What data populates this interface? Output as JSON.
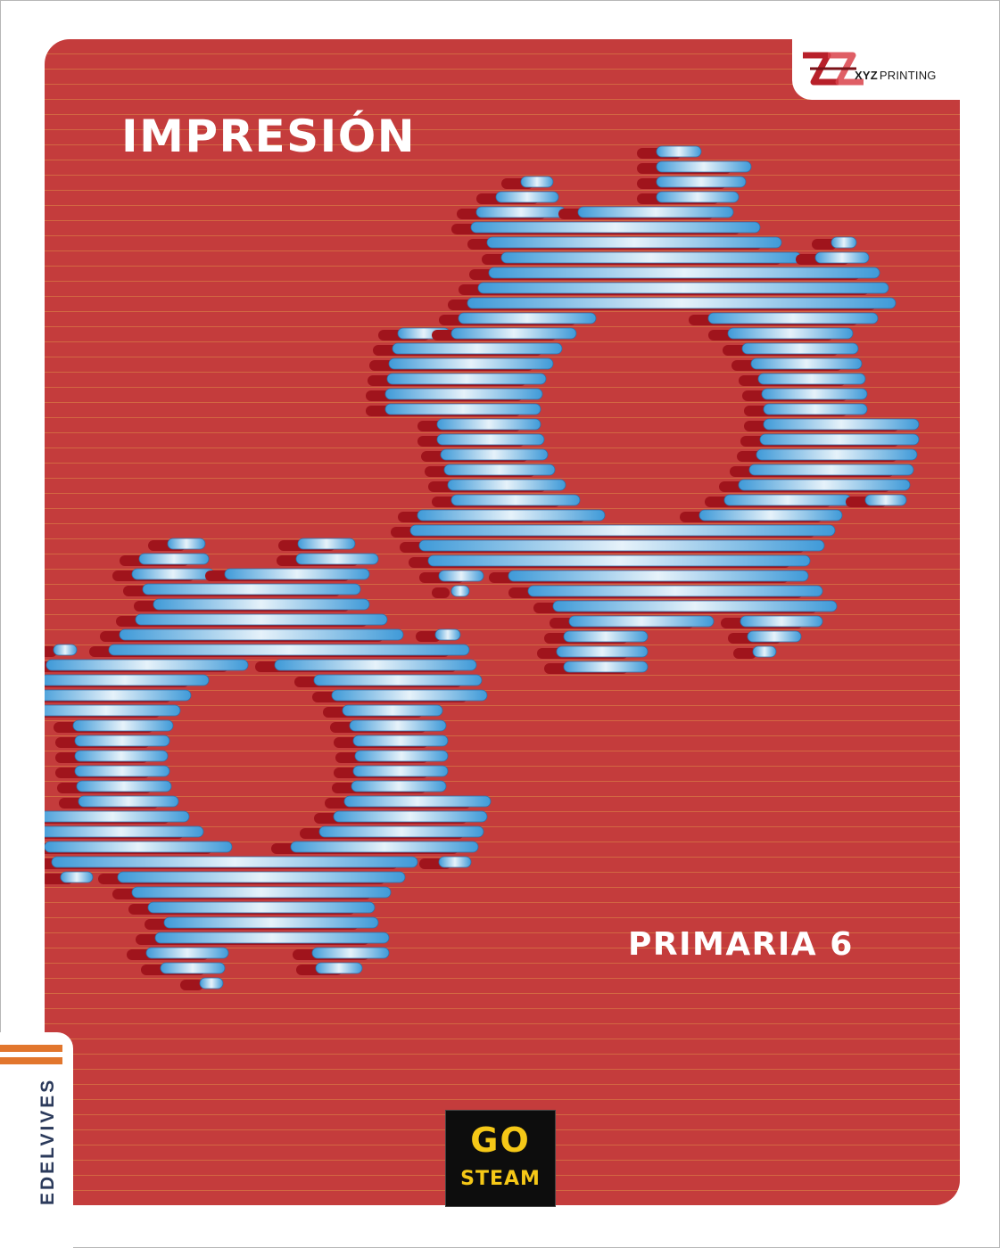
{
  "cover": {
    "title": "IMPRESIÓN",
    "subtitle": "PRIMARIA 6"
  },
  "brand_logo": {
    "name_bold": "XYZ",
    "name_light": "PRINTING",
    "icon": "xyz-printing-logo-icon"
  },
  "publisher": {
    "name": "EDELVIVES"
  },
  "badge": {
    "line1": "GO",
    "line2": "STEAM"
  },
  "illustration": {
    "subject": "gears-icon",
    "count": 2
  },
  "colors": {
    "background": "#c43c3c",
    "gear_blue": "#5aacde",
    "accent_orange": "#e2762d",
    "badge_yellow": "#f5c817"
  }
}
